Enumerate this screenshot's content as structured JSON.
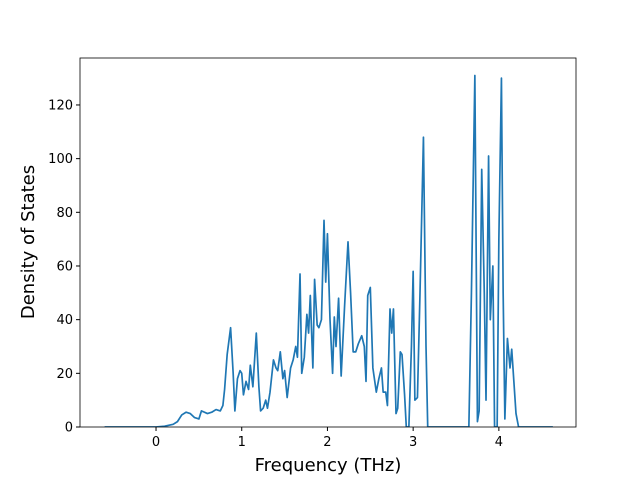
{
  "chart_data": {
    "type": "line",
    "xlabel": "Frequency (THz)",
    "ylabel": "Density of States",
    "xlim": [
      -0.887,
      4.9
    ],
    "ylim": [
      0,
      137.5
    ],
    "xticks": [
      0,
      1,
      2,
      3,
      4
    ],
    "yticks": [
      0,
      20,
      40,
      60,
      80,
      100,
      120
    ],
    "grid": false,
    "series": [
      {
        "color": "#1f77b4",
        "x": [
          -0.6,
          0.0,
          0.1,
          0.2,
          0.25,
          0.3,
          0.35,
          0.4,
          0.45,
          0.5,
          0.53,
          0.6,
          0.65,
          0.7,
          0.75,
          0.78,
          0.8,
          0.83,
          0.87,
          0.9,
          0.92,
          0.95,
          0.98,
          1.0,
          1.02,
          1.05,
          1.08,
          1.1,
          1.13,
          1.17,
          1.2,
          1.22,
          1.25,
          1.28,
          1.3,
          1.33,
          1.37,
          1.4,
          1.42,
          1.45,
          1.48,
          1.5,
          1.53,
          1.57,
          1.6,
          1.63,
          1.65,
          1.68,
          1.7,
          1.73,
          1.76,
          1.78,
          1.8,
          1.83,
          1.85,
          1.88,
          1.9,
          1.93,
          1.96,
          1.98,
          2.0,
          2.03,
          2.06,
          2.08,
          2.1,
          2.13,
          2.16,
          2.2,
          2.24,
          2.27,
          2.3,
          2.33,
          2.36,
          2.4,
          2.43,
          2.45,
          2.47,
          2.5,
          2.53,
          2.57,
          2.6,
          2.63,
          2.65,
          2.68,
          2.7,
          2.73,
          2.75,
          2.77,
          2.8,
          2.82,
          2.85,
          2.87,
          2.9,
          2.92,
          2.95,
          2.98,
          3.0,
          3.02,
          3.05,
          3.08,
          3.12,
          3.15,
          3.17,
          3.2,
          3.65,
          3.68,
          3.72,
          3.75,
          3.77,
          3.8,
          3.83,
          3.85,
          3.88,
          3.9,
          3.93,
          3.95,
          3.98,
          4.0,
          4.03,
          4.05,
          4.07,
          4.1,
          4.13,
          4.15,
          4.2,
          4.23,
          4.63
        ],
        "values": [
          0,
          0,
          0.3,
          1,
          2,
          4.5,
          5.5,
          5,
          3.5,
          3,
          6,
          5,
          5.5,
          6.5,
          6,
          8,
          14,
          27,
          37,
          20,
          6,
          18,
          21,
          20,
          12,
          17,
          14,
          23,
          15,
          35,
          15,
          6,
          7,
          10,
          7,
          13,
          25,
          22,
          21,
          28,
          18,
          21,
          11,
          22,
          25,
          30,
          26,
          57,
          20,
          26,
          42,
          35,
          49,
          22,
          55,
          38,
          37,
          40,
          77,
          54,
          72,
          40,
          20,
          41,
          30,
          48,
          19,
          45,
          69,
          50,
          28,
          28,
          31,
          34,
          30,
          17,
          49,
          52,
          22,
          13,
          18,
          22,
          13,
          13,
          8,
          44,
          35,
          44,
          5,
          7,
          28,
          27,
          12,
          0,
          0,
          30,
          58,
          10,
          11,
          50,
          108,
          30,
          0,
          0,
          0,
          50,
          131,
          2,
          6,
          96,
          50,
          10,
          101,
          40,
          60,
          0,
          0,
          70,
          130,
          50,
          3,
          33,
          22,
          29,
          5,
          0,
          0
        ]
      }
    ]
  }
}
